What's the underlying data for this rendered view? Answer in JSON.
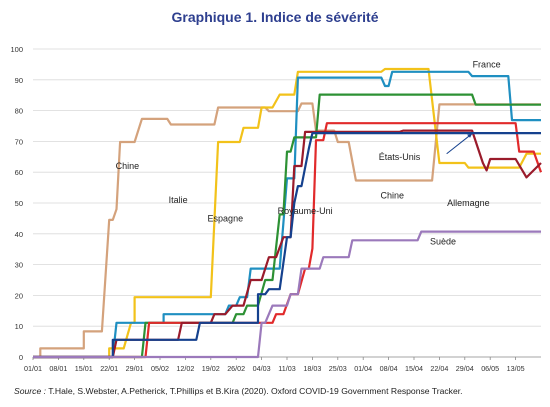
{
  "title": "Graphique 1. Indice de sévérité",
  "source_label": "Source :",
  "source_text": "T.Hale, S.Webster, A.Petherick, T.Phillips et B.Kira (2020). Oxford COVID-19 Government Response Tracker.",
  "chart_data": {
    "type": "line",
    "title": "Graphique 1. Indice de sévérité",
    "xlabel": "",
    "ylabel": "",
    "ylim": [
      0,
      100
    ],
    "yticks": [
      0,
      10,
      20,
      30,
      40,
      50,
      60,
      70,
      80,
      90,
      100
    ],
    "grid": "horizontal",
    "x_tick_labels": [
      "01/01",
      "08/01",
      "15/01",
      "22/01",
      "29/01",
      "05/02",
      "12/02",
      "19/02",
      "26/02",
      "04/03",
      "11/03",
      "18/03",
      "25/03",
      "01/04",
      "08/04",
      "15/04",
      "22/04",
      "29/04",
      "06/05",
      "13/05"
    ],
    "x_unit": "days since 01/01/2020",
    "xlim": [
      0,
      140
    ],
    "series": [
      {
        "name": "Chine",
        "color": "#d4a27c",
        "points": [
          [
            0,
            0
          ],
          [
            2,
            0
          ],
          [
            2,
            2.8
          ],
          [
            14,
            2.8
          ],
          [
            14,
            8.3
          ],
          [
            19,
            8.3
          ],
          [
            21,
            44.5
          ],
          [
            22,
            44.5
          ],
          [
            23,
            48
          ],
          [
            24,
            69.8
          ],
          [
            28,
            69.8
          ],
          [
            30,
            77.3
          ],
          [
            37,
            77.3
          ],
          [
            38,
            75.5
          ],
          [
            50,
            75.5
          ],
          [
            51,
            81
          ],
          [
            64,
            81
          ],
          [
            65,
            79.8
          ],
          [
            73,
            79.8
          ],
          [
            74,
            82.3
          ],
          [
            77,
            82.3
          ],
          [
            78,
            73.5
          ],
          [
            83,
            73.5
          ],
          [
            84,
            69.8
          ],
          [
            87,
            69.8
          ],
          [
            89,
            57.3
          ],
          [
            110,
            57.3
          ],
          [
            112,
            82
          ],
          [
            140,
            82
          ]
        ]
      },
      {
        "name": "Italie",
        "color": "#f2c21a",
        "points": [
          [
            0,
            0
          ],
          [
            21,
            0
          ],
          [
            21,
            2.8
          ],
          [
            25,
            2.8
          ],
          [
            27,
            11.1
          ],
          [
            28,
            11.1
          ],
          [
            28,
            19.4
          ],
          [
            49,
            19.4
          ],
          [
            51,
            69.8
          ],
          [
            57,
            69.8
          ],
          [
            58,
            74.4
          ],
          [
            62,
            74.4
          ],
          [
            63,
            81
          ],
          [
            66,
            81
          ],
          [
            68,
            85.2
          ],
          [
            72,
            85.2
          ],
          [
            73,
            92.6
          ],
          [
            96,
            92.6
          ],
          [
            97,
            93.5
          ],
          [
            109,
            93.5
          ],
          [
            112,
            63
          ],
          [
            119,
            63
          ],
          [
            120,
            61.5
          ],
          [
            134,
            61.5
          ],
          [
            136,
            66
          ],
          [
            140,
            66
          ]
        ]
      },
      {
        "name": "France",
        "color": "#1f8fc1",
        "points": [
          [
            0,
            0
          ],
          [
            22,
            0
          ],
          [
            23,
            11.1
          ],
          [
            36,
            11.1
          ],
          [
            36,
            13.9
          ],
          [
            53,
            13.9
          ],
          [
            54,
            16.7
          ],
          [
            56,
            16.7
          ],
          [
            57,
            19.4
          ],
          [
            59,
            19.4
          ],
          [
            60,
            28.7
          ],
          [
            68,
            28.7
          ],
          [
            70,
            58
          ],
          [
            72,
            58
          ],
          [
            73,
            90.7
          ],
          [
            96,
            90.7
          ],
          [
            97,
            88
          ],
          [
            98,
            88
          ],
          [
            99,
            92.6
          ],
          [
            120,
            92.6
          ],
          [
            121,
            91.2
          ],
          [
            131,
            91.2
          ],
          [
            132,
            76.9
          ],
          [
            140,
            76.9
          ]
        ]
      },
      {
        "name": "Espagne",
        "color": "#2d9134",
        "points": [
          [
            0,
            0
          ],
          [
            30,
            0
          ],
          [
            31,
            11.1
          ],
          [
            55,
            11.1
          ],
          [
            56,
            13.9
          ],
          [
            58,
            13.9
          ],
          [
            59,
            16.7
          ],
          [
            62,
            16.7
          ],
          [
            64,
            25
          ],
          [
            66,
            25
          ],
          [
            68,
            46.3
          ],
          [
            69,
            46.3
          ],
          [
            70,
            66.7
          ],
          [
            71,
            66.7
          ],
          [
            72,
            71.3
          ],
          [
            78,
            71.3
          ],
          [
            79,
            85.2
          ],
          [
            121,
            85.2
          ],
          [
            122,
            81.9
          ],
          [
            140,
            81.9
          ]
        ]
      },
      {
        "name": "Royaume-Uni",
        "color": "#e12a2b",
        "points": [
          [
            0,
            0
          ],
          [
            31,
            0
          ],
          [
            32,
            11.1
          ],
          [
            66,
            11.1
          ],
          [
            67,
            13.9
          ],
          [
            69,
            13.9
          ],
          [
            71,
            20.4
          ],
          [
            73,
            20.4
          ],
          [
            75,
            28.7
          ],
          [
            76,
            28.7
          ],
          [
            77,
            35.2
          ],
          [
            78,
            70.4
          ],
          [
            80,
            70.4
          ],
          [
            81,
            75.9
          ],
          [
            133,
            75.9
          ],
          [
            134,
            66.7
          ],
          [
            138,
            66.7
          ],
          [
            140,
            60
          ]
        ]
      },
      {
        "name": "Allemagne",
        "color": "#9a1b2b",
        "points": [
          [
            0,
            0
          ],
          [
            22,
            0
          ],
          [
            23,
            5.6
          ],
          [
            40,
            5.6
          ],
          [
            41,
            11.1
          ],
          [
            49,
            11.1
          ],
          [
            50,
            13.9
          ],
          [
            53,
            13.9
          ],
          [
            55,
            16.7
          ],
          [
            58,
            16.7
          ],
          [
            60,
            25
          ],
          [
            63,
            25
          ],
          [
            65,
            32.4
          ],
          [
            67,
            32.4
          ],
          [
            69,
            38.9
          ],
          [
            71,
            38.9
          ],
          [
            72,
            62
          ],
          [
            74,
            62
          ],
          [
            75,
            73.1
          ],
          [
            101,
            73.1
          ],
          [
            102,
            73.5
          ],
          [
            121,
            73.5
          ],
          [
            124,
            63
          ],
          [
            125,
            60.6
          ],
          [
            126,
            64.3
          ],
          [
            133,
            64.3
          ],
          [
            136,
            58.3
          ],
          [
            140,
            63
          ]
        ]
      },
      {
        "name": "États-Unis",
        "color": "#15418e",
        "points": [
          [
            0,
            0
          ],
          [
            22,
            0
          ],
          [
            22,
            5.6
          ],
          [
            45,
            5.6
          ],
          [
            46,
            11.1
          ],
          [
            62,
            11.1
          ],
          [
            62,
            20.4
          ],
          [
            64,
            20.4
          ],
          [
            65,
            22
          ],
          [
            68,
            22
          ],
          [
            70,
            38.9
          ],
          [
            71,
            38.9
          ],
          [
            72,
            50
          ],
          [
            73,
            55.5
          ],
          [
            74,
            55.5
          ],
          [
            76,
            67.6
          ],
          [
            77,
            72.7
          ],
          [
            140,
            72.7
          ]
        ]
      },
      {
        "name": "Suède",
        "color": "#9b79bb",
        "points": [
          [
            0,
            0
          ],
          [
            62,
            0
          ],
          [
            63,
            11.1
          ],
          [
            64,
            11.1
          ],
          [
            66,
            16.7
          ],
          [
            70,
            16.7
          ],
          [
            71,
            20.4
          ],
          [
            73,
            20.4
          ],
          [
            74,
            28.7
          ],
          [
            79,
            28.7
          ],
          [
            80,
            32.4
          ],
          [
            87,
            32.4
          ],
          [
            88,
            37.9
          ],
          [
            106,
            37.9
          ],
          [
            107,
            40.7
          ],
          [
            140,
            40.7
          ]
        ]
      }
    ],
    "annotations": [
      {
        "text": "Chine",
        "x": 26,
        "y": 61,
        "color": "#222222"
      },
      {
        "text": "Italie",
        "x": 40,
        "y": 50,
        "color": "#222222"
      },
      {
        "text": "Espagne",
        "x": 53,
        "y": 44,
        "color": "#222222"
      },
      {
        "text": "Royaume-Uni",
        "x": 75,
        "y": 46.5,
        "color": "#222222"
      },
      {
        "text": "France",
        "x": 125,
        "y": 94,
        "color": "#222222"
      },
      {
        "text": "États-Unis",
        "x": 101,
        "y": 64,
        "color": "#222222"
      },
      {
        "text": "Chine",
        "x": 99,
        "y": 51.5,
        "color": "#222222"
      },
      {
        "text": "Allemagne",
        "x": 120,
        "y": 49,
        "color": "#222222"
      },
      {
        "text": "Suède",
        "x": 113,
        "y": 36.5,
        "color": "#222222"
      }
    ]
  }
}
